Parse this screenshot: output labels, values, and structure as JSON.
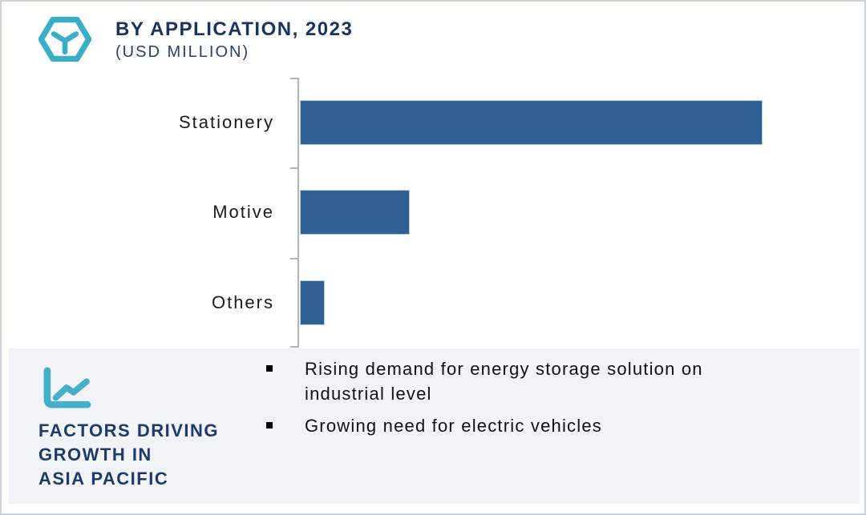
{
  "page": {
    "title": "BY APPLICATION, 2023",
    "subtitle": "(USD MILLION)"
  },
  "chart_data": {
    "type": "bar",
    "orientation": "horizontal",
    "title": "BY APPLICATION, 2023",
    "units_label": "USD MILLION",
    "categories": [
      "Stationery",
      "Motive",
      "Others"
    ],
    "values": [
      100,
      23.7,
      5.4
    ],
    "value_note": "relative bar lengths as % of largest bar; no numeric axis labels are shown in the image",
    "xlim": [
      0,
      100
    ],
    "grid": false,
    "legend": false,
    "bar_color": "#2e6191",
    "axis_color": "#b3b3b3"
  },
  "factors": {
    "heading": "FACTORS DRIVING\nGROWTH IN\nASIA PACIFIC",
    "items": [
      "Rising demand for energy storage solution on\nindustrial level",
      "Growing need for electric vehicles"
    ]
  },
  "icons": {
    "brand": "hexagon-cube-icon",
    "factors": "line-chart-icon",
    "bullet": "black-square-bullet"
  },
  "colors": {
    "accent_teal": "#3aaec6",
    "navy": "#173462",
    "bar_blue": "#2e6191",
    "panel_bg": "#f2f3f7",
    "page_border": "#ccd3db"
  }
}
